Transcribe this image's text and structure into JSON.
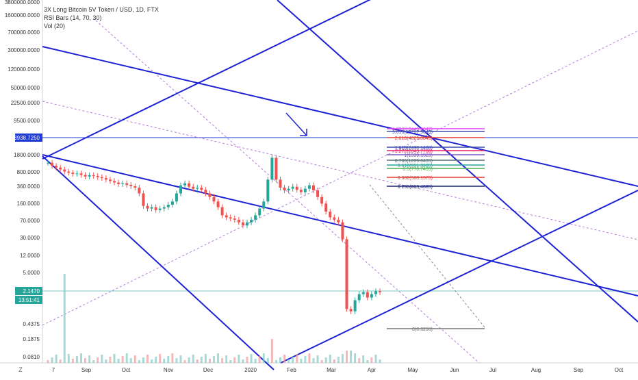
{
  "legend": {
    "title": "3X Long Bitcoin 5V Token / USD, 1D, FTX",
    "indicator1": "RSI Bars (14, 70, 30)",
    "indicator2": "Vol (20)"
  },
  "z_button": "Z",
  "chart_data": {
    "type": "candlestick",
    "y_scale": "log",
    "y_ticks": [
      "3800000.0000",
      "1600000.0000",
      "700000.0000",
      "300000.0000",
      "120000.0000",
      "50000.0000",
      "22500.0000",
      "9500.0000",
      "3938.7250",
      "1800.0000",
      "800.0000",
      "360.0000",
      "160.0000",
      "70.0000",
      "30.0000",
      "12.0000",
      "5.0000",
      "2.1470",
      "13:51:41",
      "0.4375",
      "0.1875",
      "0.0810"
    ],
    "x_ticks": [
      "7",
      "Sep",
      "Oct",
      "Nov",
      "Dec",
      "2020",
      "Feb",
      "Mar",
      "Apr",
      "May",
      "Jun",
      "Jul",
      "Aug",
      "Sep",
      "Oct"
    ],
    "price_markers": [
      {
        "label": "3938.7250",
        "value": 3938.725,
        "color": "#1e3bd6"
      },
      {
        "label": "2.1470",
        "value": 2.147,
        "color": "#26a69a"
      },
      {
        "label": "13:51:41",
        "value": 1.62,
        "color": "#26a69a"
      }
    ],
    "fib_levels": [
      {
        "label": "4.236(18449.8642)",
        "value": 15500,
        "color": "#e040fb"
      },
      {
        "label": "3.618(15767.9045)",
        "value": 12000,
        "color": "#3f51b5"
      },
      {
        "label": "2.618(4029.8845)",
        "value": 4030,
        "color": "#e53935"
      },
      {
        "label": "1.618(2490.1488)",
        "value": 2490,
        "color": "#3949ab"
      },
      {
        "label": "1.272(2043.7768)",
        "value": 2040,
        "color": "#e91e63"
      },
      {
        "label": "1(1539.1529)",
        "value": 1540,
        "color": "#7e57c2"
      },
      {
        "label": "0.786(1209.6435)",
        "value": 1210,
        "color": "#546e7a"
      },
      {
        "label": "0.618(951.3205)",
        "value": 950,
        "color": "#26a69a"
      },
      {
        "label": "0.5(770.7455)",
        "value": 770,
        "color": "#4caf50"
      },
      {
        "label": "0.382(588.1575)",
        "value": 590,
        "color": "#e53935"
      },
      {
        "label": "0.236(363.4885)",
        "value": 363,
        "color": "#1a237e"
      },
      {
        "label": "0(0.3250)",
        "value": 0.325,
        "color": "#777777"
      }
    ],
    "candles_approx": [
      [
        0,
        1400
      ],
      [
        1,
        1200
      ],
      [
        2,
        1100
      ],
      [
        3,
        1000
      ],
      [
        4,
        900
      ],
      [
        5,
        850
      ],
      [
        6,
        800
      ],
      [
        7,
        820
      ],
      [
        8,
        760
      ],
      [
        9,
        700
      ],
      [
        10,
        750
      ],
      [
        11,
        720
      ],
      [
        12,
        680
      ],
      [
        13,
        650
      ],
      [
        14,
        600
      ],
      [
        15,
        560
      ],
      [
        16,
        520
      ],
      [
        17,
        480
      ],
      [
        18,
        500
      ],
      [
        19,
        460
      ],
      [
        20,
        430
      ],
      [
        21,
        400
      ],
      [
        22,
        300
      ],
      [
        23,
        160
      ],
      [
        24,
        140
      ],
      [
        25,
        150
      ],
      [
        26,
        130
      ],
      [
        27,
        140
      ],
      [
        28,
        150
      ],
      [
        29,
        170
      ],
      [
        30,
        200
      ],
      [
        31,
        300
      ],
      [
        32,
        450
      ],
      [
        33,
        500
      ],
      [
        34,
        420
      ],
      [
        35,
        380
      ],
      [
        36,
        400
      ],
      [
        37,
        360
      ],
      [
        38,
        300
      ],
      [
        39,
        250
      ],
      [
        40,
        200
      ],
      [
        41,
        150
      ],
      [
        42,
        100
      ],
      [
        43,
        90
      ],
      [
        44,
        85
      ],
      [
        45,
        80
      ],
      [
        46,
        70
      ],
      [
        47,
        60
      ],
      [
        48,
        70
      ],
      [
        49,
        80
      ],
      [
        50,
        100
      ],
      [
        51,
        140
      ],
      [
        52,
        200
      ],
      [
        53,
        600
      ],
      [
        54,
        1800
      ],
      [
        55,
        600
      ],
      [
        56,
        400
      ],
      [
        57,
        350
      ],
      [
        58,
        380
      ],
      [
        59,
        420
      ],
      [
        60,
        360
      ],
      [
        61,
        320
      ],
      [
        62,
        380
      ],
      [
        63,
        450
      ],
      [
        64,
        350
      ],
      [
        65,
        250
      ],
      [
        66,
        180
      ],
      [
        67,
        120
      ],
      [
        68,
        90
      ],
      [
        69,
        80
      ],
      [
        70,
        70
      ],
      [
        71,
        30
      ],
      [
        72,
        0.9
      ],
      [
        73,
        0.8
      ],
      [
        74,
        1.4
      ],
      [
        75,
        1.9
      ],
      [
        76,
        2.1
      ],
      [
        77,
        1.6
      ],
      [
        78,
        1.9
      ],
      [
        79,
        2.2
      ],
      [
        80,
        2.1
      ]
    ]
  }
}
